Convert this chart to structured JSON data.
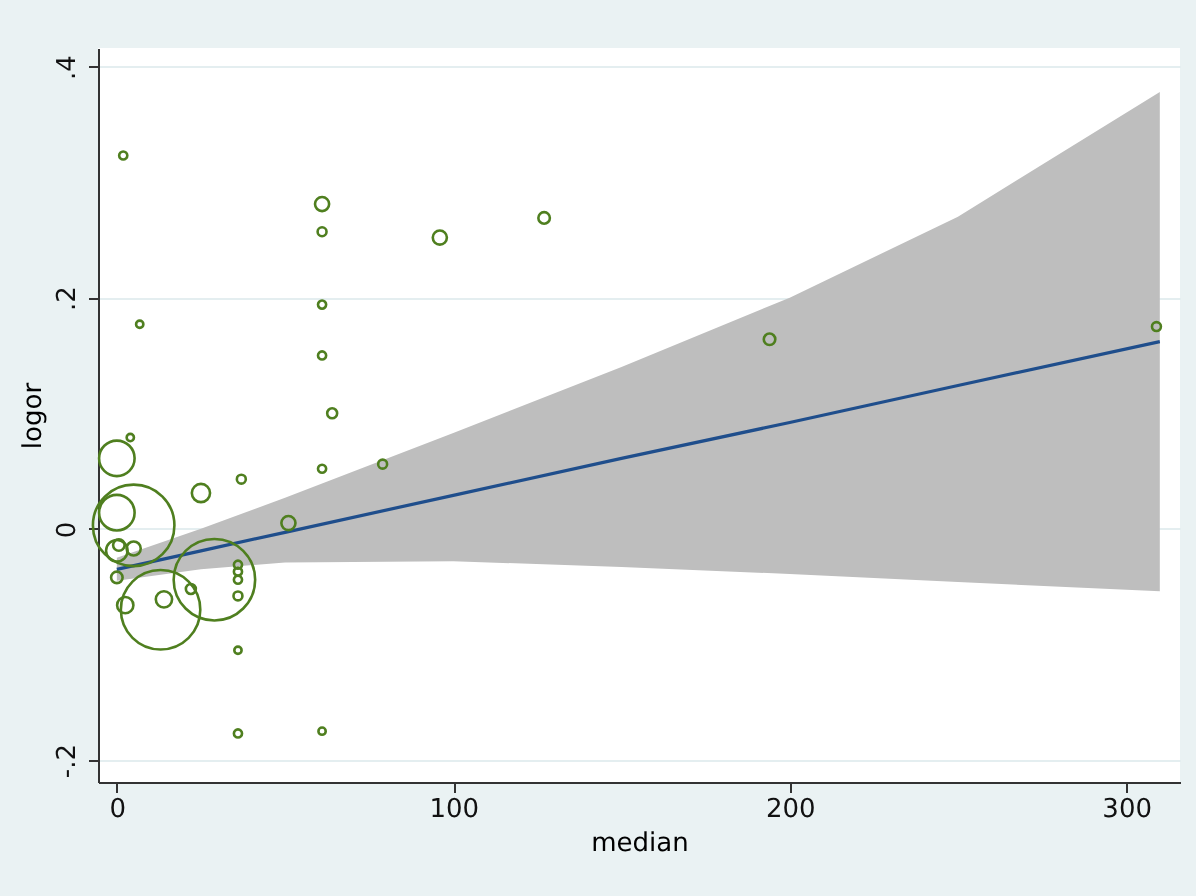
{
  "chart_data": {
    "type": "bubble",
    "xlabel": "median",
    "ylabel": "logor",
    "xlim": [
      -5.6,
      316
    ],
    "ylim": [
      -0.219,
      0.416
    ],
    "xticks": [
      0,
      100,
      200,
      300
    ],
    "yticks": [
      {
        "value": -0.2,
        "label": "-.2"
      },
      {
        "value": 0,
        "label": "0"
      },
      {
        "value": 0.2,
        "label": ".2"
      },
      {
        "value": 0.4,
        "label": ".4"
      }
    ],
    "grid": "y",
    "marker": "circle",
    "series": [
      {
        "type": "line",
        "marker": "none",
        "line_style": "solid",
        "color": "#1f4e8c",
        "x": [
          0,
          25,
          50,
          100,
          150,
          200,
          250,
          310
        ],
        "values": [
          -0.035,
          -0.019,
          -0.003,
          0.029,
          0.061,
          0.092,
          0.124,
          0.162
        ],
        "lower": [
          -0.045,
          -0.035,
          -0.029,
          -0.028,
          -0.033,
          -0.039,
          -0.046,
          -0.054
        ],
        "upper": [
          -0.025,
          0.0,
          0.027,
          0.083,
          0.14,
          0.2,
          0.27,
          0.378
        ]
      },
      {
        "color": "#4f7f1f",
        "x": [
          1.9,
          6.8,
          61,
          61,
          96,
          127,
          61,
          61,
          64,
          61,
          79,
          51,
          194,
          309,
          61,
          36,
          36,
          37,
          25,
          0,
          5,
          0,
          29,
          13,
          14,
          22,
          36,
          36,
          36,
          36,
          2.5,
          0,
          0.6,
          5,
          0,
          4
        ],
        "values": [
          0.323,
          0.177,
          0.281,
          0.257,
          0.252,
          0.269,
          0.194,
          0.15,
          0.1,
          0.052,
          0.056,
          0.005,
          0.164,
          0.175,
          -0.175,
          -0.177,
          -0.105,
          0.043,
          0.031,
          0.061,
          0.003,
          0.014,
          -0.044,
          -0.07,
          -0.061,
          -0.052,
          -0.031,
          -0.037,
          -0.044,
          -0.058,
          -0.066,
          -0.019,
          -0.014,
          -0.017,
          -0.042,
          0.079
        ],
        "sizes": [
          0.01,
          0.008,
          0.03,
          0.012,
          0.03,
          0.02,
          0.01,
          0.01,
          0.015,
          0.01,
          0.012,
          0.03,
          0.02,
          0.012,
          0.008,
          0.01,
          0.008,
          0.012,
          0.05,
          0.19,
          1,
          0.19,
          1,
          0.95,
          0.04,
          0.015,
          0.01,
          0.01,
          0.01,
          0.012,
          0.04,
          0.07,
          0.02,
          0.03,
          0.02,
          0.008
        ]
      }
    ]
  }
}
